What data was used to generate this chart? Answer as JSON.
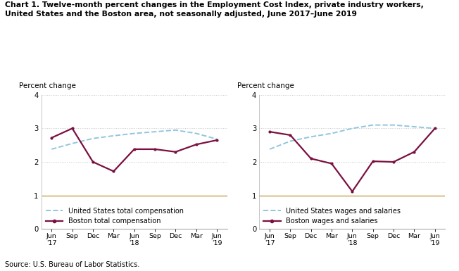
{
  "title_line1": "Chart 1. Twelve-month percent changes in the Employment Cost Index, private industry workers,",
  "title_line2": "United States and the Boston area, not seasonally adjusted, June 2017–June 2019",
  "source": "Source: U.S. Bureau of Labor Statistics.",
  "ylabel": "Percent change",
  "x_positions": [
    0,
    1,
    2,
    3,
    4,
    5,
    6,
    7,
    8
  ],
  "x_labels": [
    "Jun\n'17",
    "Sep",
    "Dec",
    "Mar",
    "Jun\n'18",
    "Sep",
    "Dec",
    "Mar",
    "Jun\n'19"
  ],
  "left_us": [
    2.38,
    2.55,
    2.7,
    2.78,
    2.85,
    2.9,
    2.95,
    2.85,
    2.68
  ],
  "left_boston": [
    2.72,
    3.0,
    2.0,
    1.72,
    2.38,
    2.38,
    2.3,
    2.52,
    2.65
  ],
  "right_us": [
    2.38,
    2.62,
    2.75,
    2.85,
    3.0,
    3.1,
    3.1,
    3.05,
    3.0
  ],
  "right_boston": [
    2.9,
    2.8,
    2.1,
    1.95,
    1.12,
    2.02,
    2.0,
    2.3,
    3.0
  ],
  "us_color": "#92C5DE",
  "boston_color": "#7B1040",
  "ylim": [
    0.0,
    4.0
  ],
  "yticks": [
    0.0,
    1.0,
    2.0,
    3.0,
    4.0
  ],
  "grid_color": "#c8c8c8",
  "ref_line_color": "#C8A050",
  "left_legend_us": "United States total compensation",
  "left_legend_boston": "Boston total compensation",
  "right_legend_us": "United States wages and salaries",
  "right_legend_boston": "Boston wages and salaries"
}
